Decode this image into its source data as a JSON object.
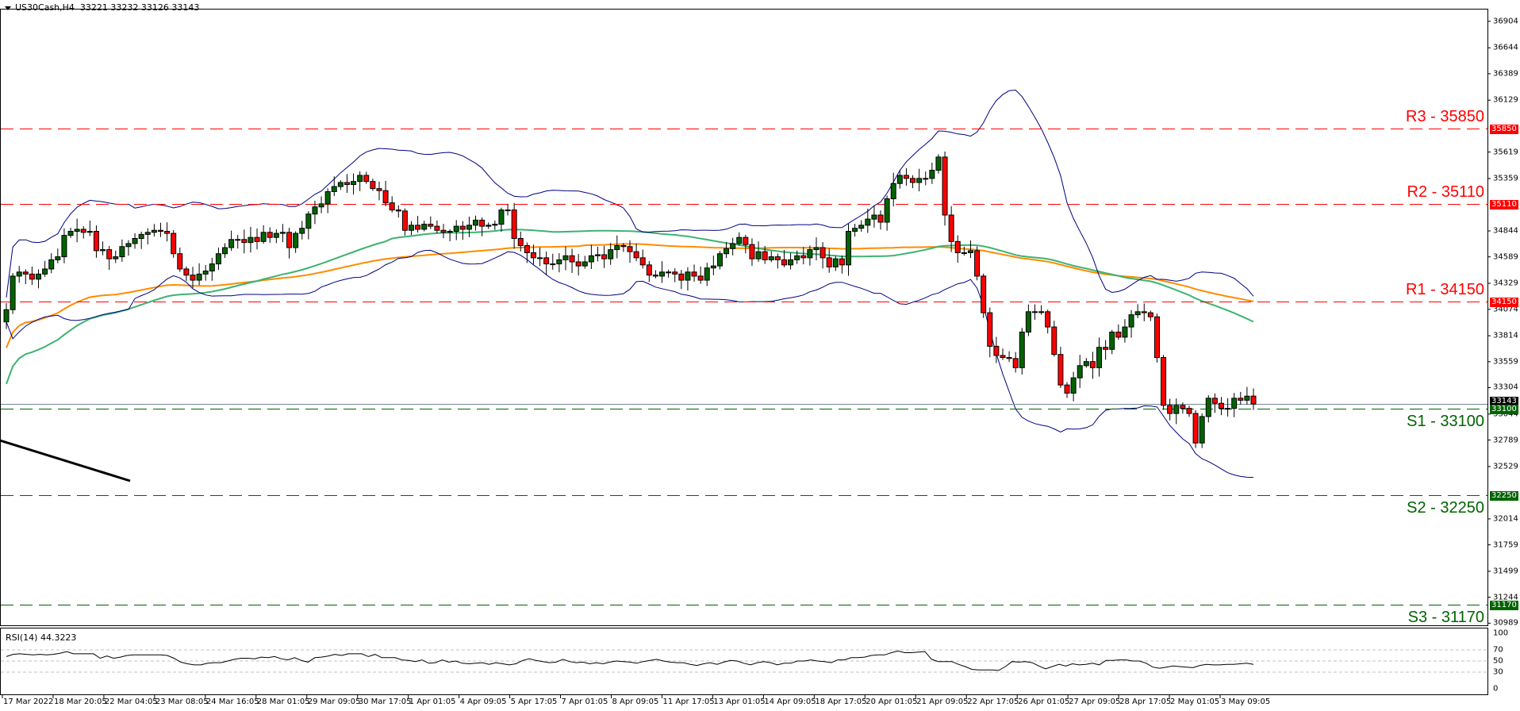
{
  "header": {
    "symbol": "US30Cash,H4",
    "ohlc": "33221 33232 33126 33143"
  },
  "rsi": {
    "label": "RSI(14) 44.3223",
    "levels": [
      100,
      70,
      50,
      30,
      0
    ],
    "values": [
      58,
      62,
      63,
      62,
      61,
      62,
      61,
      62,
      64,
      67,
      63,
      63,
      63,
      63,
      55,
      59,
      55,
      57,
      60,
      61,
      61,
      61,
      61,
      61,
      60,
      55,
      48,
      45,
      43,
      43,
      46,
      47,
      47,
      50,
      53,
      55,
      55,
      54,
      57,
      56,
      58,
      54,
      52,
      56,
      51,
      48,
      56,
      57,
      59,
      62,
      60,
      63,
      63,
      63,
      58,
      62,
      56,
      56,
      56,
      52,
      51,
      49,
      52,
      46,
      47,
      52,
      48,
      50,
      46,
      45,
      46,
      47,
      44,
      47,
      45,
      43,
      45,
      51,
      54,
      51,
      49,
      47,
      48,
      53,
      49,
      47,
      48,
      45,
      47,
      45,
      48,
      50,
      49,
      48,
      46,
      49,
      51,
      53,
      50,
      48,
      47,
      47,
      44,
      42,
      45,
      47,
      44,
      48,
      51,
      50,
      46,
      43,
      47,
      49,
      47,
      43,
      46,
      46,
      50,
      50,
      52,
      50,
      49,
      47,
      52,
      52,
      56,
      56,
      57,
      60,
      61,
      61,
      65,
      68,
      65,
      65,
      66,
      67,
      53,
      49,
      49,
      49,
      44,
      40,
      35,
      34,
      34,
      34,
      33,
      40,
      49,
      48,
      49,
      47,
      41,
      36,
      40,
      44,
      41,
      45,
      43,
      44,
      46,
      43,
      51,
      51,
      52,
      52,
      50,
      50,
      46,
      39,
      37,
      39,
      41,
      40,
      39,
      38,
      42,
      44,
      43,
      43,
      44,
      44,
      45,
      46,
      44
    ]
  },
  "levels": [
    {
      "name": "R3",
      "label": "R3 - 35850",
      "value": 35850,
      "color": "#ff0000",
      "axis_label": "35850"
    },
    {
      "name": "R2",
      "label": "R2 - 35110",
      "value": 35110,
      "color": "#ff0000",
      "axis_label": "35110"
    },
    {
      "name": "R1",
      "label": "R1 - 34150",
      "value": 34150,
      "color": "#ff0000",
      "axis_label": "34150"
    },
    {
      "name": "S1",
      "label": "S1 - 33100",
      "value": 33100,
      "color": "#006400",
      "axis_label": "33100"
    },
    {
      "name": "S2",
      "label": "S2 - 32250",
      "value": 32250,
      "color": "#006400",
      "axis_label": "32250"
    },
    {
      "name": "S3",
      "label": "S3 - 31170",
      "value": 31170,
      "color": "#006400",
      "axis_label": "31170"
    }
  ],
  "current_price": {
    "value": 33143,
    "label": "33143"
  },
  "price_axis": [
    "36904",
    "36644",
    "36389",
    "36129",
    "35619",
    "35359",
    "34844",
    "34589",
    "34329",
    "34074",
    "33814",
    "33559",
    "33304",
    "33044",
    "32789",
    "32529",
    "32014",
    "31759",
    "31499",
    "31244",
    "30989"
  ],
  "time_axis": [
    "17 Mar 2022",
    "18 Mar 20:05",
    "22 Mar 04:05",
    "23 Mar 08:05",
    "24 Mar 16:05",
    "28 Mar 01:05",
    "29 Mar 09:05",
    "30 Mar 17:05",
    "1 Apr 01:05",
    "4 Apr 09:05",
    "5 Apr 17:05",
    "7 Apr 01:05",
    "8 Apr 09:05",
    "11 Apr 17:05",
    "13 Apr 01:05",
    "14 Apr 09:05",
    "18 Apr 17:05",
    "20 Apr 01:05",
    "21 Apr 09:05",
    "22 Apr 17:05",
    "26 Apr 01:05",
    "27 Apr 09:05",
    "28 Apr 17:05",
    "2 May 01:05",
    "3 May 09:05"
  ],
  "colors": {
    "bull": "#006400",
    "bear": "#ff0000",
    "ma_fast": "#3cb371",
    "ma_slow": "#ff8c00",
    "bollinger": "#000080",
    "trendline": "#000000"
  },
  "chart_data": {
    "type": "candlestick",
    "title": "US30Cash,H4",
    "timeframe": "H4",
    "last_ohlc": {
      "open": 33221,
      "high": 33232,
      "low": 33126,
      "close": 33143
    },
    "ylim": [
      30989,
      37000
    ],
    "x_labels": [
      "17 Mar 2022",
      "18 Mar 20:05",
      "22 Mar 04:05",
      "23 Mar 08:05",
      "24 Mar 16:05",
      "28 Mar 01:05",
      "29 Mar 09:05",
      "30 Mar 17:05",
      "1 Apr 01:05",
      "4 Apr 09:05",
      "5 Apr 17:05",
      "7 Apr 01:05",
      "8 Apr 09:05",
      "11 Apr 17:05",
      "13 Apr 01:05",
      "14 Apr 09:05",
      "18 Apr 17:05",
      "20 Apr 01:05",
      "21 Apr 09:05",
      "22 Apr 17:05",
      "26 Apr 01:05",
      "27 Apr 09:05",
      "28 Apr 17:05",
      "2 May 01:05",
      "3 May 09:05"
    ],
    "closes": [
      34070,
      34400,
      34440,
      34420,
      34370,
      34420,
      34470,
      34560,
      34590,
      34800,
      34840,
      34860,
      34830,
      34840,
      34650,
      34660,
      34570,
      34590,
      34690,
      34720,
      34770,
      34810,
      34830,
      34850,
      34840,
      34820,
      34620,
      34470,
      34410,
      34360,
      34420,
      34450,
      34520,
      34620,
      34680,
      34760,
      34760,
      34730,
      34780,
      34740,
      34830,
      34780,
      34820,
      34830,
      34680,
      34820,
      34870,
      35010,
      35080,
      35110,
      35230,
      35280,
      35320,
      35300,
      35330,
      35390,
      35330,
      35260,
      35240,
      35120,
      35050,
      35040,
      34850,
      34900,
      34860,
      34910,
      34890,
      34850,
      34830,
      34840,
      34890,
      34860,
      34900,
      34950,
      34890,
      34900,
      34910,
      35050,
      35050,
      34770,
      34700,
      34630,
      34580,
      34580,
      34520,
      34520,
      34560,
      34600,
      34540,
      34500,
      34540,
      34600,
      34610,
      34570,
      34660,
      34700,
      34690,
      34640,
      34580,
      34510,
      34410,
      34400,
      34440,
      34440,
      34420,
      34360,
      34440,
      34400,
      34360,
      34480,
      34500,
      34620,
      34670,
      34720,
      34780,
      34710,
      34570,
      34640,
      34560,
      34590,
      34560,
      34510,
      34560,
      34600,
      34580,
      34660,
      34680,
      34580,
      34490,
      34570,
      34510,
      34840,
      34870,
      34900,
      34960,
      35000,
      34930,
      35160,
      35310,
      35390,
      35360,
      35320,
      35360,
      35360,
      35440,
      35570,
      35000,
      34740,
      34630,
      34630,
      34650,
      34400,
      34040,
      33710,
      33620,
      33600,
      33590,
      33500,
      33850,
      34050,
      34050,
      34050,
      33900,
      33630,
      33330,
      33250,
      33400,
      33520,
      33560,
      33500,
      33700,
      33680,
      33850,
      33800,
      33900,
      34020,
      34050,
      34040,
      34000,
      33600,
      33130,
      33050,
      33130,
      33100,
      33050,
      32760,
      33020,
      33200,
      33150,
      33100,
      33100,
      33200,
      33180,
      33220,
      33143
    ],
    "levels": {
      "R3": 35850,
      "R2": 35110,
      "R1": 34150,
      "S1": 33100,
      "S2": 32250,
      "S3": 31170
    },
    "indicators": [
      "Bollinger Bands",
      "Moving Average (fast, green)",
      "Moving Average (slow, orange)",
      "RSI(14)"
    ],
    "rsi_last": 44.3223,
    "rsi_levels": [
      70,
      50,
      30
    ]
  }
}
